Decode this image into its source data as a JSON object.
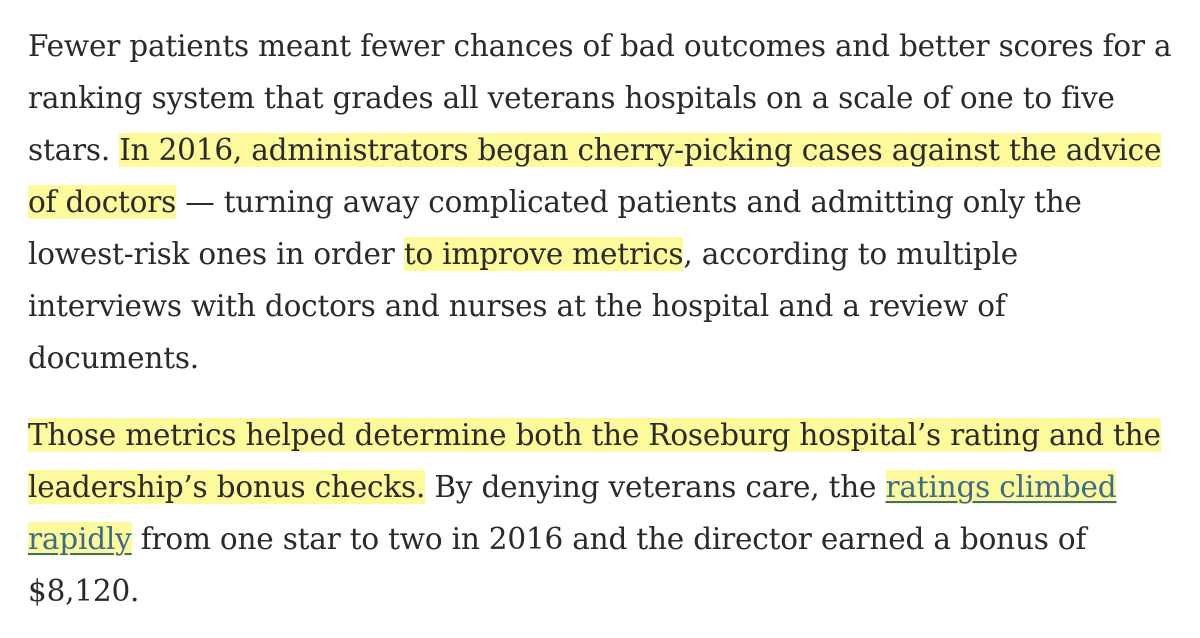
{
  "article": {
    "p1": {
      "s1": "Fewer patients meant fewer chances of bad outcomes and better scores for a ranking system that grades all veterans hospitals on a scale of one to five stars. ",
      "h1": "In 2016, administrators began cherry-picking cases against the advice of doctors",
      "s2": " — turning away complicated patients and admitting only the lowest-risk ones in order ",
      "h2": "to improve metrics",
      "s3": ", according to multiple interviews with doctors and nurses at the hospital and a review of documents."
    },
    "p2": {
      "h1": "Those metrics helped determine both the Roseburg hospital’s rating and the leadership’s bonus checks.",
      "s1": " By denying veterans care, the ",
      "link": "ratings climbed rapidly",
      "s2": " from one star to two in 2016 and the director earned a bonus of $8,120."
    }
  },
  "colors": {
    "highlight": "#fdfa9c",
    "link": "#3d6b8e",
    "text": "#2a2a2a"
  }
}
